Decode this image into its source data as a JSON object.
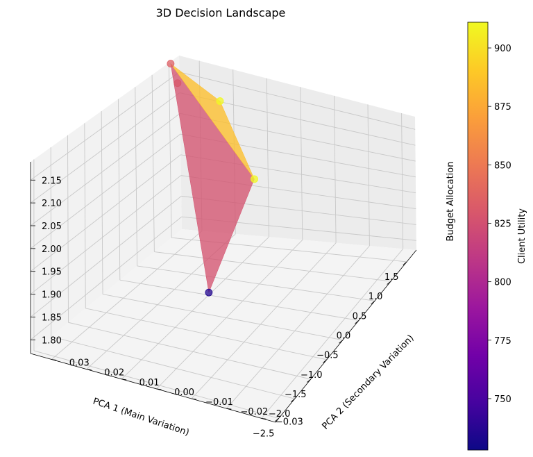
{
  "chart_data": {
    "type": "surface3d",
    "title": "3D Decision Landscape",
    "xlabel": "PCA 1 (Main Variation)",
    "ylabel": "PCA 2 (Secondary Variation)",
    "zlabel": "Budget Allocation",
    "colorbar_label": "Client Utility",
    "colormap": "plasma",
    "xticks": [
      "−2.5",
      "−2.0",
      "−1.5",
      "−1.0",
      "−0.5",
      "0.0",
      "0.5",
      "1.0",
      "1.5"
    ],
    "yticks": [
      "−0.03",
      "−0.02",
      "−0.01",
      "0.00",
      "0.01",
      "0.02",
      "0.03"
    ],
    "zticks": [
      "1.80",
      "1.85",
      "1.90",
      "1.95",
      "2.00",
      "2.05",
      "2.10",
      "2.15"
    ],
    "colorbar_ticks": [
      "750",
      "775",
      "800",
      "825",
      "850",
      "875",
      "900"
    ],
    "xlim": [
      -2.6,
      1.8
    ],
    "ylim": [
      -0.034,
      0.036
    ],
    "zlim": [
      1.77,
      2.19
    ],
    "clim": [
      728,
      911
    ],
    "points": [
      {
        "x": -2.2,
        "y": -0.012,
        "z": 1.975,
        "utility": 735
      },
      {
        "x": 1.55,
        "y": 0.036,
        "z": 2.185,
        "utility": 835
      },
      {
        "x": 1.45,
        "y": 0.033,
        "z": 2.15,
        "utility": 830
      },
      {
        "x": 1.05,
        "y": 0.0065,
        "z": 1.985,
        "utility": 911
      },
      {
        "x": 1.7,
        "y": 0.023,
        "z": 2.11,
        "utility": 911
      }
    ],
    "triangles": [
      [
        0,
        1,
        3
      ],
      [
        1,
        4,
        3
      ]
    ],
    "grid": true
  }
}
